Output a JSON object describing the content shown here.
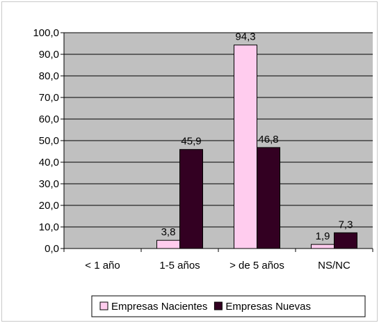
{
  "chart_data": {
    "type": "bar",
    "categories": [
      "< 1 año",
      "1-5 años",
      "> de 5 años",
      "NS/NC"
    ],
    "series": [
      {
        "name": "Empresas Nacientes",
        "values": [
          null,
          3.8,
          94.3,
          1.9
        ],
        "labels": [
          "",
          "3,8",
          "94,3",
          "1,9"
        ]
      },
      {
        "name": "Empresas Nuevas",
        "values": [
          null,
          45.9,
          46.8,
          7.3
        ],
        "labels": [
          "",
          "45,9",
          "46,8",
          "7,3"
        ]
      }
    ],
    "ylim": [
      0,
      100
    ],
    "yticks": [
      0,
      10,
      20,
      30,
      40,
      50,
      60,
      70,
      80,
      90,
      100
    ],
    "ytick_labels": [
      "0,0",
      "10,0",
      "20,0",
      "30,0",
      "40,0",
      "50,0",
      "60,0",
      "70,0",
      "80,0",
      "90,0",
      "100,0"
    ],
    "grid": true,
    "legend": "bottom",
    "colors": {
      "plot_background": "#c0c0c0",
      "series": [
        "#ffccee",
        "#330022"
      ],
      "gridline": "#000000"
    }
  }
}
